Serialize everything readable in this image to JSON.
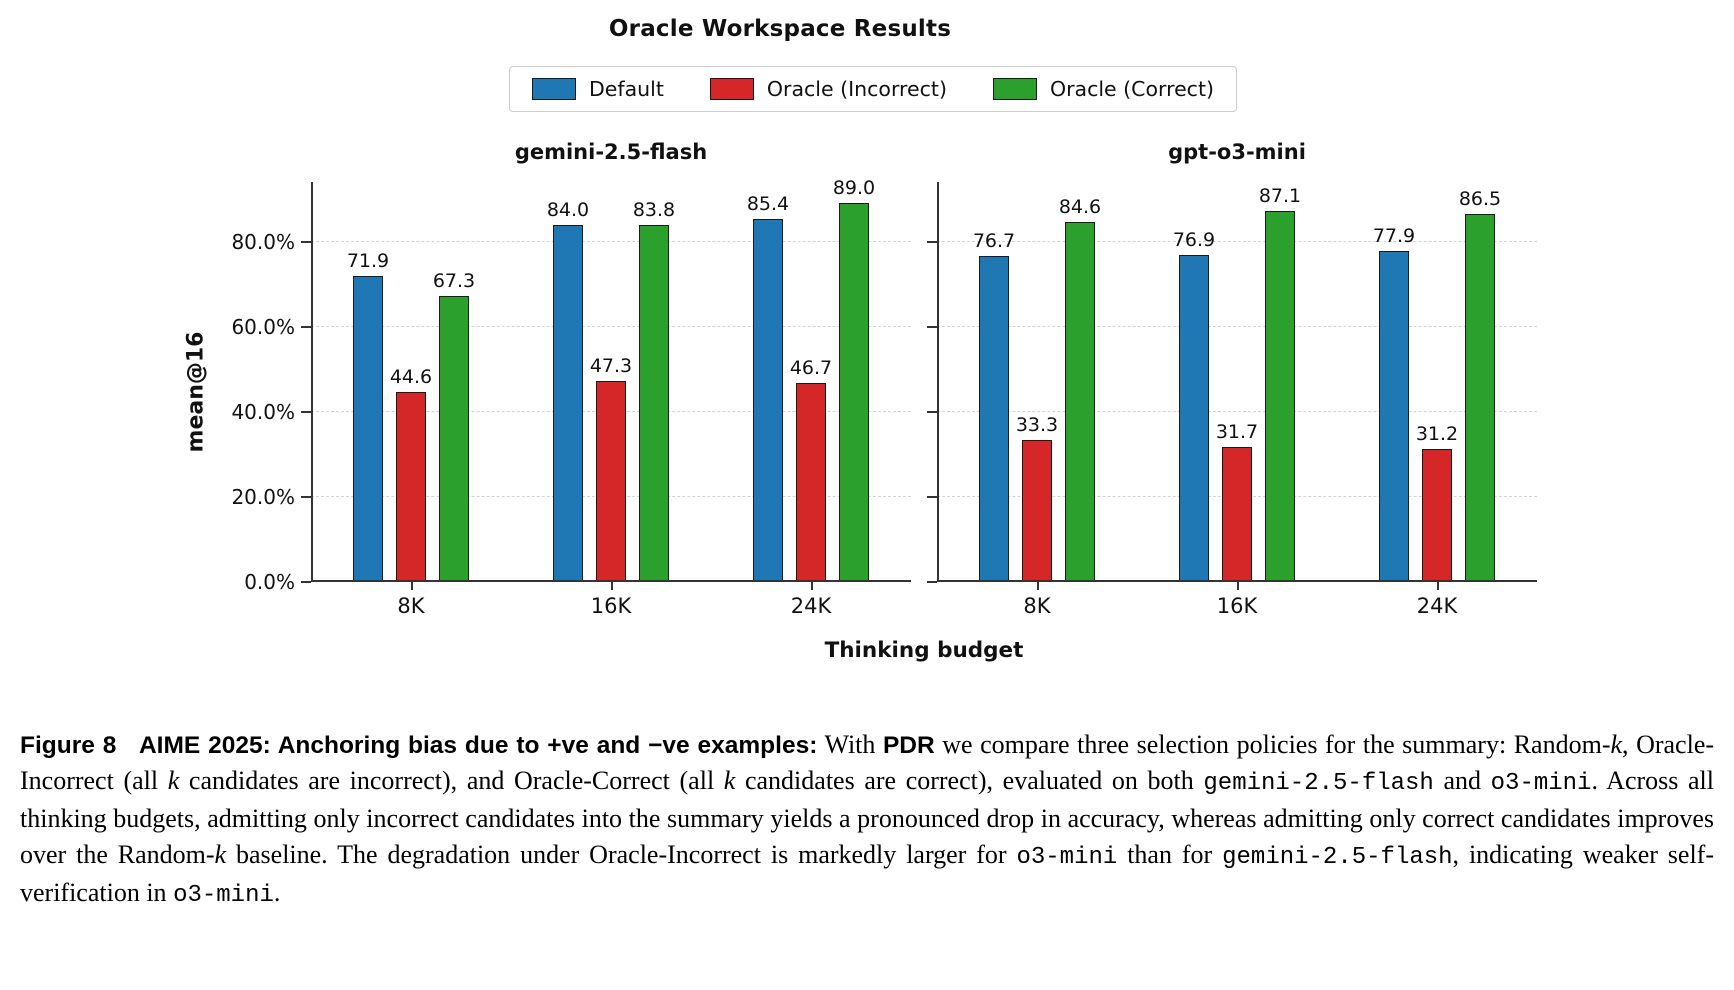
{
  "chart_data": {
    "type": "bar",
    "title": "Oracle Workspace Results",
    "xlabel": "Thinking budget",
    "ylabel": "mean@16",
    "categories": [
      "8K",
      "16K",
      "24K"
    ],
    "ylim": [
      0,
      94
    ],
    "grid": "horizontal dashed lines at y ticks",
    "legend_position": "top center",
    "bar_edge_color": "#1a1a1a",
    "y_ticks": [
      {
        "label": "0.0%",
        "value": 0
      },
      {
        "label": "20.0%",
        "value": 20
      },
      {
        "label": "40.0%",
        "value": 40
      },
      {
        "label": "60.0%",
        "value": 60
      },
      {
        "label": "80.0%",
        "value": 80
      }
    ],
    "legend": [
      {
        "label": "Default",
        "color": "#1f77b4"
      },
      {
        "label": "Oracle (Incorrect)",
        "color": "#d62728"
      },
      {
        "label": "Oracle (Correct)",
        "color": "#2ca02c"
      }
    ],
    "subplots": [
      {
        "title": "gemini-2.5-flash",
        "series": [
          {
            "name": "Default",
            "values": [
              71.9,
              84.0,
              85.4
            ]
          },
          {
            "name": "Oracle (Incorrect)",
            "values": [
              44.6,
              47.3,
              46.7
            ]
          },
          {
            "name": "Oracle (Correct)",
            "values": [
              67.3,
              83.8,
              89.0
            ]
          }
        ]
      },
      {
        "title": "gpt-o3-mini",
        "series": [
          {
            "name": "Default",
            "values": [
              76.7,
              76.9,
              77.9
            ]
          },
          {
            "name": "Oracle (Incorrect)",
            "values": [
              33.3,
              31.7,
              31.2
            ]
          },
          {
            "name": "Oracle (Correct)",
            "values": [
              84.6,
              87.1,
              86.5
            ]
          }
        ]
      }
    ]
  },
  "figure": {
    "caption_segments": [
      {
        "text": "Figure 8   AIME 2025: Anchoring bias due to +ve and −ve examples:",
        "style": "bold-sans"
      },
      {
        "text": " With ",
        "style": "serif"
      },
      {
        "text": "PDR",
        "style": "bold-sans"
      },
      {
        "text": " we compare three selection policies for the summary: Random-",
        "style": "serif"
      },
      {
        "text": "k",
        "style": "italic"
      },
      {
        "text": ", Oracle-Incorrect (all ",
        "style": "serif"
      },
      {
        "text": "k",
        "style": "italic"
      },
      {
        "text": " candidates are incorrect), and Oracle-Correct (all ",
        "style": "serif"
      },
      {
        "text": "k",
        "style": "italic"
      },
      {
        "text": " candidates are correct), evaluated on both ",
        "style": "serif"
      },
      {
        "text": "gemini-2.5-flash",
        "style": "mono"
      },
      {
        "text": " and ",
        "style": "serif"
      },
      {
        "text": "o3-mini",
        "style": "mono"
      },
      {
        "text": ". Across all thinking budgets, admitting only incorrect candidates into the summary yields a pronounced drop in accuracy, whereas admitting only correct candidates improves over the Random-",
        "style": "serif"
      },
      {
        "text": "k",
        "style": "italic"
      },
      {
        "text": " baseline. The degradation under Oracle-Incorrect is markedly larger for ",
        "style": "serif"
      },
      {
        "text": "o3-mini",
        "style": "mono"
      },
      {
        "text": " than for ",
        "style": "serif"
      },
      {
        "text": "gemini-2.5-flash",
        "style": "mono"
      },
      {
        "text": ", indicating weaker self-verification in ",
        "style": "serif"
      },
      {
        "text": "o3-mini",
        "style": "mono"
      },
      {
        "text": ".",
        "style": "serif"
      }
    ]
  }
}
